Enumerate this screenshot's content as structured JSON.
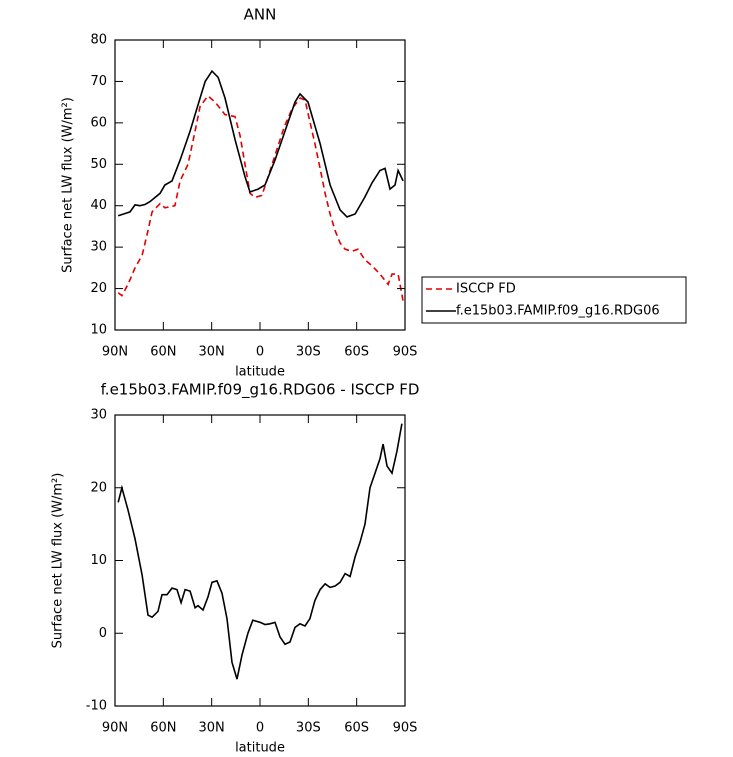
{
  "chart_data": [
    {
      "type": "line",
      "title": "ANN",
      "xlabel": "latitude",
      "ylabel": "Surface net LW flux (W/m²)",
      "xlim": [
        90,
        -90
      ],
      "ylim": [
        10,
        80
      ],
      "xticks": [
        {
          "value": 90,
          "label": "90N"
        },
        {
          "value": 60,
          "label": "60N"
        },
        {
          "value": 30,
          "label": "30N"
        },
        0,
        {
          "value": -30,
          "label": "30S"
        },
        {
          "value": -60,
          "label": "60S"
        },
        {
          "value": -90,
          "label": "90S"
        }
      ],
      "yticks": [
        10,
        20,
        30,
        40,
        50,
        60,
        70,
        80
      ],
      "legend": "right",
      "series": [
        {
          "name": "ISCCP FD",
          "color": "#e00000",
          "dashed": true,
          "x": [
            88,
            85.7,
            81.9,
            77.6,
            73.2,
            69.5,
            67,
            62,
            59,
            52.8,
            49.6,
            44.7,
            40.3,
            37.2,
            32.3,
            27.9,
            21.7,
            15.5,
            12.4,
            6.2,
            3.1,
            -1.2,
            -5,
            -10,
            -15,
            -20,
            -25,
            -28,
            -30,
            -34.1,
            -37.3,
            -40.4,
            -43.5,
            -46.6,
            -49.7,
            -52.8,
            -57,
            -60.8,
            -65,
            -69.5,
            -74.5,
            -79.5,
            -82,
            -85.7,
            -88.8
          ],
          "values": [
            19,
            18.3,
            21,
            25,
            28,
            34,
            38.5,
            40.5,
            39.5,
            40,
            46,
            50,
            58,
            64,
            66.5,
            65,
            62,
            61.5,
            57,
            43,
            42,
            42.5,
            47,
            53,
            59,
            63.5,
            66,
            65.5,
            62,
            55,
            49,
            43,
            38,
            34,
            31,
            29.5,
            29,
            29.5,
            27,
            25.5,
            23.5,
            21,
            23.5,
            23.5,
            17
          ]
        },
        {
          "name": "f.e15b03.FAMIP.f09_g16.RDG06",
          "color": "#000000",
          "dashed": false,
          "x": [
            88,
            80.7,
            77.6,
            74.5,
            71.4,
            68.3,
            62,
            59,
            54.6,
            49.6,
            43.4,
            37.2,
            34,
            29.8,
            26,
            21.7,
            15.5,
            9.3,
            6.2,
            1.2,
            -3.1,
            -9.3,
            -15.5,
            -21.7,
            -24.8,
            -29.8,
            -37.3,
            -43.5,
            -49.7,
            -54,
            -59,
            -65,
            -69.5,
            -74.5,
            -77.6,
            -80.7,
            -83.8,
            -85.7,
            -88.8
          ],
          "values": [
            37.6,
            38.5,
            40.2,
            40,
            40.3,
            41,
            43,
            45,
            46,
            51,
            58,
            66,
            70,
            72.5,
            71,
            66,
            56,
            47,
            43.3,
            44,
            45,
            51,
            58,
            65,
            67,
            65,
            55,
            45,
            39,
            37.3,
            38,
            42,
            45.5,
            48.5,
            49,
            44,
            45,
            48.5,
            46
          ]
        }
      ]
    },
    {
      "type": "line",
      "title": "f.e15b03.FAMIP.f09_g16.RDG06 - ISCCP FD",
      "xlabel": "latitude",
      "ylabel": "Surface net LW flux (W/m²)",
      "xlim": [
        90,
        -90
      ],
      "ylim": [
        -10,
        30
      ],
      "xticks": [
        {
          "value": 90,
          "label": "90N"
        },
        {
          "value": 60,
          "label": "60N"
        },
        {
          "value": 30,
          "label": "30N"
        },
        0,
        {
          "value": -30,
          "label": "30S"
        },
        {
          "value": -60,
          "label": "60S"
        },
        {
          "value": -90,
          "label": "90S"
        }
      ],
      "yticks": [
        -10,
        0,
        10,
        20,
        30
      ],
      "series": [
        {
          "color": "#000000",
          "dashed": false,
          "x": [
            88,
            85.7,
            82,
            77.6,
            73.2,
            69.5,
            67,
            63.3,
            60.8,
            57.7,
            54.6,
            51.5,
            49,
            46.5,
            43.4,
            40.3,
            38.5,
            35.4,
            32.3,
            29.8,
            26.7,
            23.6,
            20.5,
            17.4,
            14.3,
            11.2,
            7.5,
            4.5,
            0,
            -3.1,
            -6.2,
            -9.3,
            -12.4,
            -15.5,
            -18.6,
            -21.7,
            -24.8,
            -27.9,
            -31,
            -34.1,
            -37.3,
            -40.4,
            -43.5,
            -46.6,
            -49.7,
            -52.8,
            -55.9,
            -59,
            -62.1,
            -65.2,
            -68.3,
            -71.4,
            -74.5,
            -76.4,
            -78.8,
            -81.9,
            -85,
            -88.1
          ],
          "values": [
            18,
            20,
            17,
            13,
            8,
            2.5,
            2.2,
            3,
            5.3,
            5.3,
            6.2,
            6,
            4.2,
            6,
            5.8,
            3.5,
            3.8,
            3.2,
            5,
            7,
            7.2,
            5.5,
            2,
            -4,
            -6.3,
            -3,
            0,
            1.8,
            1.5,
            1.2,
            1.3,
            1.5,
            -0.5,
            -1.5,
            -1.2,
            0.8,
            1.3,
            1,
            2,
            4.5,
            6,
            6.8,
            6.3,
            6.5,
            7,
            8.2,
            7.8,
            10.5,
            12.5,
            15,
            20,
            22,
            24,
            26,
            23,
            22,
            25,
            28.8
          ]
        }
      ]
    }
  ]
}
